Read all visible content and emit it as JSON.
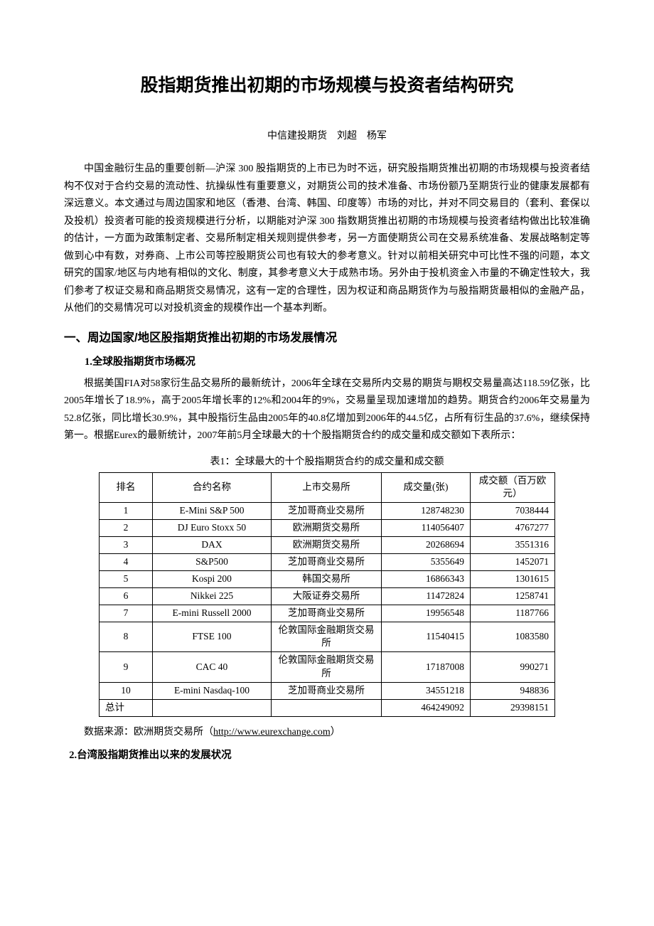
{
  "title": "股指期货推出初期的市场规模与投资者结构研究",
  "byline": "中信建投期货　刘超　杨军",
  "para1": "中国金融衍生品的重要创新—沪深 300 股指期货的上市已为时不远，研究股指期货推出初期的市场规模与投资者结构不仅对于合约交易的流动性、抗操纵性有重要意义，对期货公司的技术准备、市场份额乃至期货行业的健康发展都有深远意义。本文通过与周边国家和地区（香港、台湾、韩国、印度等）市场的对比，并对不同交易目的（套利、套保以及投机）投资者可能的投资规模进行分析，以期能对沪深 300 指数期货推出初期的市场规模与投资者结构做出比较准确的估计，一方面为政策制定者、交易所制定相关规则提供参考，另一方面使期货公司在交易系统准备、发展战略制定等做到心中有数，对券商、上市公司等控股期货公司也有较大的参考意义。针对以前相关研究中可比性不强的问题，本文研究的国家/地区与内地有相似的文化、制度，其参考意义大于成熟市场。另外由于投机资金入市量的不确定性较大，我们参考了权证交易和商品期货交易情况，这有一定的合理性，因为权证和商品期货作为与股指期货最相似的金融产品，从他们的交易情况可以对投机资金的规模作出一个基本判断。",
  "section1": "一、周边国家/地区股指期货推出初期的市场发展情况",
  "sub1": "1.全球股指期货市场概况",
  "para2": "根据美国FIA对58家衍生品交易所的最新统计，2006年全球在交易所内交易的期货与期权交易量高达118.59亿张，比2005年增长了18.9%，高于2005年增长率的12%和2004年的9%，交易量呈现加速增加的趋势。期货合约2006年交易量为52.8亿张，同比增长30.9%，其中股指衍生品由2005年的40.8亿增加到2006年的44.5亿，占所有衍生品的37.6%，继续保持第一。根据Eurex的最新统计，2007年前5月全球最大的十个股指期货合约的成交量和成交额如下表所示：",
  "table": {
    "caption": "表1：全球最大的十个股指期货合约的成交量和成交额",
    "columns": [
      "排名",
      "合约名称",
      "上市交易所",
      "成交量(张)",
      "成交额（百万欧元）"
    ],
    "rows": [
      [
        "1",
        "E-Mini S&P 500",
        "芝加哥商业交易所",
        "128748230",
        "7038444"
      ],
      [
        "2",
        "DJ Euro Stoxx 50",
        "欧洲期货交易所",
        "114056407",
        "4767277"
      ],
      [
        "3",
        "DAX",
        "欧洲期货交易所",
        "20268694",
        "3551316"
      ],
      [
        "4",
        "S&P500",
        "芝加哥商业交易所",
        "5355649",
        "1452071"
      ],
      [
        "5",
        "Kospi 200",
        "韩国交易所",
        "16866343",
        "1301615"
      ],
      [
        "6",
        "Nikkei 225",
        "大阪证券交易所",
        "11472824",
        "1258741"
      ],
      [
        "7",
        "E-mini Russell 2000",
        "芝加哥商业交易所",
        "19956548",
        "1187766"
      ],
      [
        "8",
        "FTSE 100",
        "伦敦国际金融期货交易所",
        "11540415",
        "1083580"
      ],
      [
        "9",
        "CAC 40",
        "伦敦国际金融期货交易所",
        "17187008",
        "990271"
      ],
      [
        "10",
        "E-mini Nasdaq-100",
        "芝加哥商业交易所",
        "34551218",
        "948836"
      ],
      [
        "总计",
        "",
        "",
        "464249092",
        "29398151"
      ]
    ],
    "source_prefix": "数据来源：欧洲期货交易所（",
    "source_link": "http://www.eurexchange.com",
    "source_suffix": "）"
  },
  "sub2": "2.台湾股指期货推出以来的发展状况"
}
